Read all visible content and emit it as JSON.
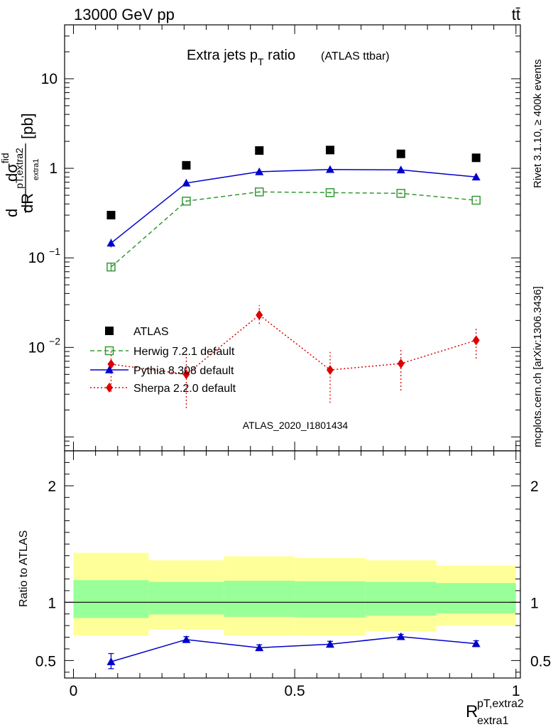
{
  "header": {
    "energy_label": "13000 GeV pp",
    "process_label": "tt̄"
  },
  "side_labels": {
    "rivet": "Rivet 3.1.10, ≥ 400k events",
    "mcplots": "mcplots.cern.ch [arXiv:1306.3436]"
  },
  "chart_data": [
    {
      "type": "scatter",
      "title": "Extra jets p",
      "title_sub": "T",
      "title_tail": " ratio",
      "title_note": "(ATLAS ttbar)",
      "watermark": "ATLAS_2020_I1801434",
      "ylabel_top": "dσ",
      "ylabel_top_sup": "fid",
      "ylabel_bottom": "dR",
      "ylabel_sup": "pT,extra2",
      "ylabel_sub": "extra1",
      "ylabel_unit": "[pb]",
      "yscale": "log",
      "ylim": [
        0.0007,
        40
      ],
      "xlim": [
        -0.02,
        1.01
      ],
      "yticks": [
        {
          "value": 0.1,
          "base": "10",
          "exp": "−1"
        },
        {
          "value": 1,
          "label": "1"
        },
        {
          "value": 10,
          "label": "10"
        },
        {
          "value": 0.01,
          "base": "10",
          "exp": "−2"
        }
      ],
      "x": [
        0.085,
        0.255,
        0.42,
        0.58,
        0.74,
        0.91
      ],
      "series": [
        {
          "name": "ATLAS",
          "color": "#000000",
          "marker": "square-filled",
          "line": "none",
          "values": [
            0.3,
            1.08,
            1.58,
            1.6,
            1.45,
            1.31
          ]
        },
        {
          "name": "Herwig 7.2.1 default",
          "color": "#339933",
          "marker": "square-open",
          "line": "dashed",
          "values": [
            0.079,
            0.43,
            0.545,
            0.535,
            0.525,
            0.44
          ],
          "err_lo": [
            0.071,
            0.42,
            0.535,
            0.525,
            0.515,
            0.43
          ],
          "err_hi": [
            0.088,
            0.44,
            0.555,
            0.545,
            0.535,
            0.45
          ]
        },
        {
          "name": "Pythia 8.308 default",
          "color": "#0000cc",
          "marker": "triangle",
          "line": "solid",
          "values": [
            0.146,
            0.685,
            0.915,
            0.97,
            0.96,
            0.8
          ],
          "err_lo": [
            0.131,
            0.67,
            0.9,
            0.955,
            0.945,
            0.785
          ],
          "err_hi": [
            0.163,
            0.7,
            0.93,
            0.985,
            0.975,
            0.815
          ]
        },
        {
          "name": "Sherpa 2.2.0 default",
          "color": "#dd0000",
          "marker": "diamond",
          "line": "dotted",
          "x_override": [
            0.085,
            0.255,
            0.42,
            0.58,
            0.74,
            0.91
          ],
          "values": [
            0.0065,
            0.005,
            0.023,
            0.0056,
            0.0066,
            0.012
          ],
          "err_lo": [
            0.0032,
            0.0021,
            0.0183,
            0.0024,
            0.0033,
            0.0075
          ],
          "err_hi": [
            0.0097,
            0.0093,
            0.0296,
            0.0089,
            0.0099,
            0.0162
          ]
        }
      ]
    },
    {
      "type": "scatter",
      "ylabel": "Ratio to ATLAS",
      "xlabel_main": "R",
      "xlabel_sup": "pT,extra2",
      "xlabel_sub": "extra1",
      "ylim": [
        0.35,
        2.3
      ],
      "xlim": [
        -0.02,
        1.01
      ],
      "yticks": [
        0.5,
        1,
        2
      ],
      "xticks": [
        {
          "value": 0,
          "label": "0"
        },
        {
          "value": 0.5,
          "label": "0.5"
        },
        {
          "value": 1,
          "label": "1"
        }
      ],
      "bins": [
        0,
        0.17,
        0.34,
        0.5,
        0.66,
        0.82,
        1.0
      ],
      "band_stat": [
        [
          0.865,
          1.19
        ],
        [
          0.895,
          1.175
        ],
        [
          0.875,
          1.185
        ],
        [
          0.87,
          1.18
        ],
        [
          0.885,
          1.175
        ],
        [
          0.905,
          1.165
        ]
      ],
      "band_total": [
        [
          0.715,
          1.425
        ],
        [
          0.765,
          1.36
        ],
        [
          0.715,
          1.395
        ],
        [
          0.715,
          1.38
        ],
        [
          0.75,
          1.36
        ],
        [
          0.8,
          1.315
        ]
      ],
      "band_colors": {
        "stat": "#99ff99",
        "total": "#ffff99"
      },
      "series": [
        {
          "name": "Pythia 8.308 default",
          "color": "#0000cc",
          "x": [
            0.085,
            0.255,
            0.42,
            0.58,
            0.74,
            0.91
          ],
          "values": [
            0.49,
            0.68,
            0.61,
            0.64,
            0.705,
            0.645
          ],
          "err_lo": [
            0.43,
            0.655,
            0.585,
            0.615,
            0.68,
            0.62
          ],
          "err_hi": [
            0.56,
            0.705,
            0.635,
            0.665,
            0.725,
            0.67
          ]
        }
      ]
    }
  ]
}
